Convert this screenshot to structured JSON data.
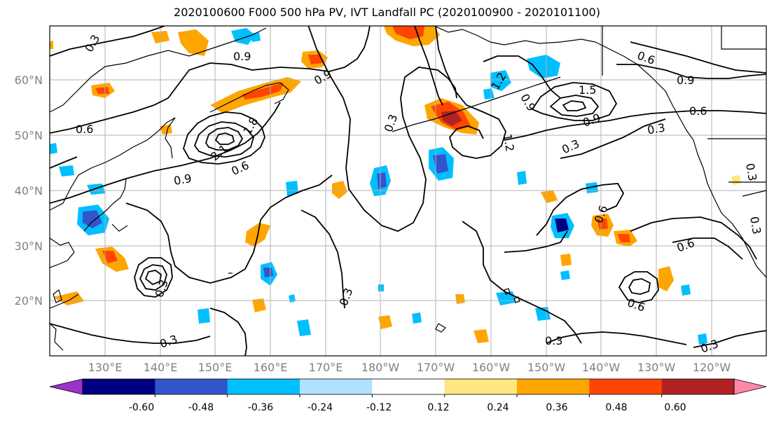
{
  "title": "2020100600 F000 500 hPa PV, IVT Landfall PC (2020100900 - 2020101100)",
  "axes": {
    "lat_labels": [
      "60°N",
      "50°N",
      "40°N",
      "30°N",
      "20°N"
    ],
    "lon_labels": [
      "130°E",
      "140°E",
      "150°E",
      "160°E",
      "170°E",
      "180°W",
      "170°W",
      "160°W",
      "150°W",
      "140°W",
      "130°W",
      "120°W"
    ]
  },
  "contour_labels": [
    "0.3",
    "0.9",
    "0.9",
    "0.6",
    "0.9",
    "0.6",
    "1.5",
    "2.1",
    "1.8",
    "0.6",
    "0.9",
    "0.3",
    "1.2",
    "0.3",
    "0.9",
    "0.6",
    "0.3",
    "0.6",
    "0.6",
    "0.3",
    "0.3",
    "0.6",
    "0.3",
    "0.3",
    "0.3",
    "0.3",
    "0.3",
    "1.2",
    "0.9"
  ],
  "colorbar": {
    "tick_labels": [
      "-0.60",
      "-0.48",
      "-0.36",
      "-0.24",
      "-0.12",
      "0.12",
      "0.24",
      "0.36",
      "0.48",
      "0.60"
    ],
    "colors": [
      "#9933cc",
      "#000080",
      "#3355cc",
      "#00bfff",
      "#b0e2ff",
      "#ffffff",
      "#ffe680",
      "#ffa500",
      "#ff4500",
      "#b22222",
      "#ff88aa"
    ]
  },
  "colors": {
    "land": "#000000",
    "grid": "#b0b0b0",
    "contour": "#000000"
  }
}
